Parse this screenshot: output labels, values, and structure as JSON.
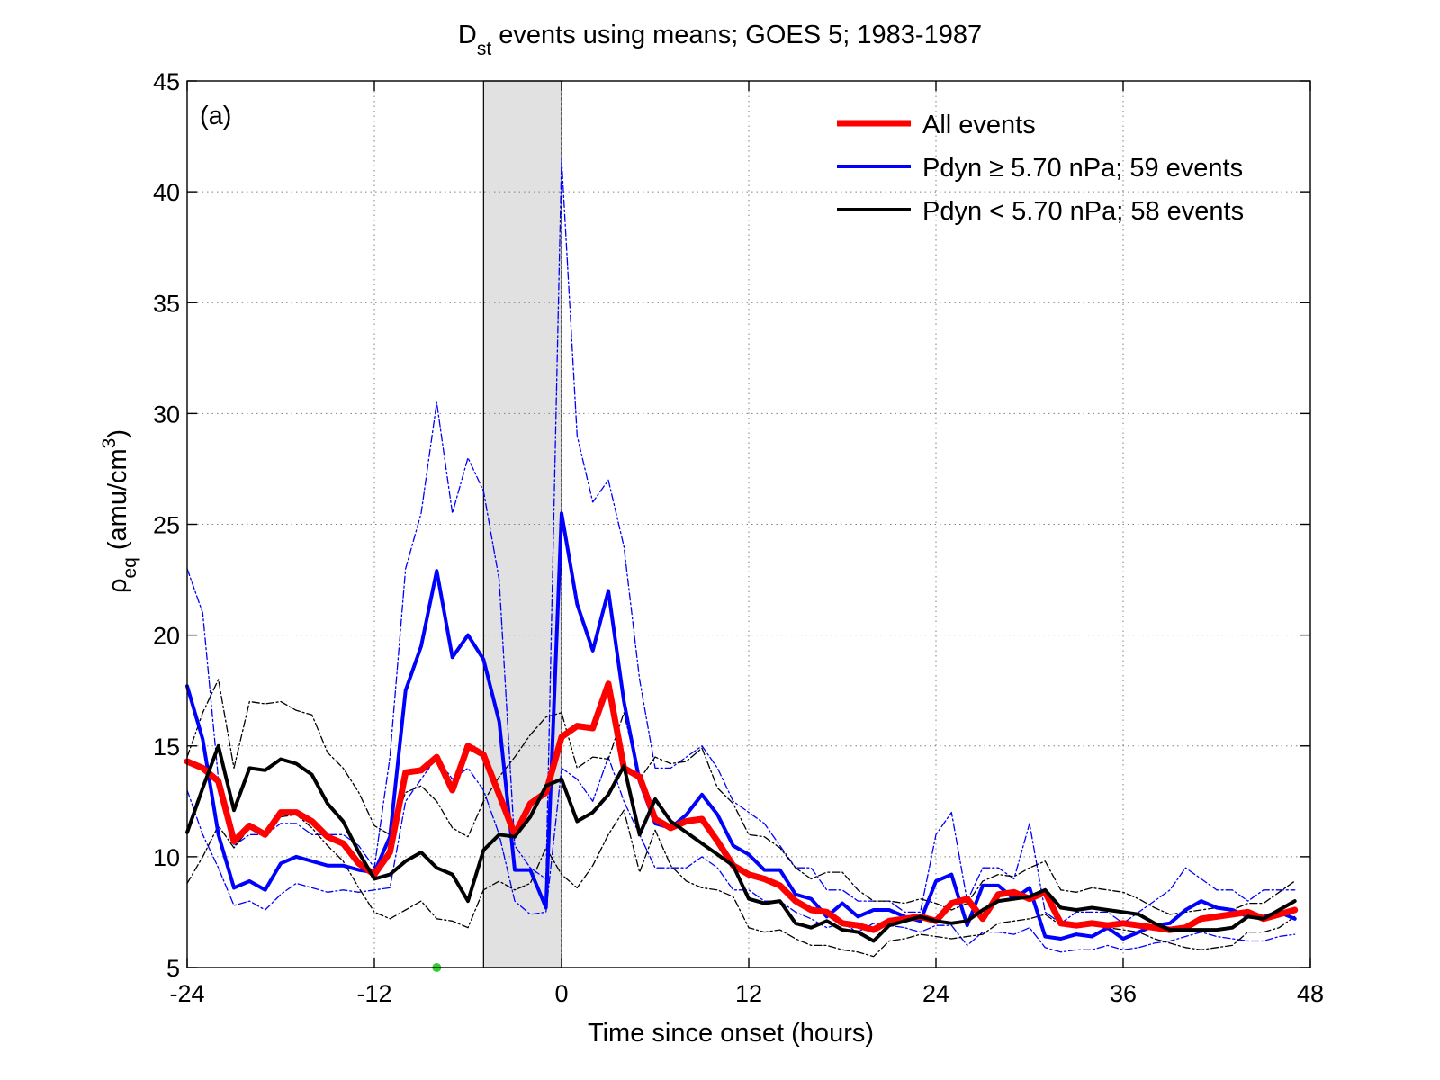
{
  "chart_data": {
    "type": "line",
    "title": {
      "main": "D",
      "subscript": "st",
      "rest": " events using means; GOES 5; 1983-1987"
    },
    "panel_label": "(a)",
    "xlabel": "Time since onset (hours)",
    "ylabel": {
      "symbol": "ρ",
      "subscript": "eq",
      "unit_open": " (amu/cm",
      "unit_power": "3",
      "unit_close": ")"
    },
    "xlim": [
      -24,
      48
    ],
    "ylim": [
      5,
      45
    ],
    "xticks": [
      -24,
      -12,
      0,
      12,
      24,
      36,
      48
    ],
    "yticks": [
      5,
      10,
      15,
      20,
      25,
      30,
      35,
      40,
      45
    ],
    "grid": true,
    "legend_position": "top-right",
    "shaded_interval": {
      "x": [
        -5,
        0
      ],
      "color": "#e1e1e1"
    },
    "marker": {
      "x": -8,
      "y": 5,
      "color": "#33cc33"
    },
    "x": [
      -24,
      -23,
      -22,
      -21,
      -20,
      -19,
      -18,
      -17,
      -16,
      -15,
      -14,
      -13,
      -12,
      -11,
      -10,
      -9,
      -8,
      -7,
      -6,
      -5,
      -4,
      -3,
      -2,
      -1,
      0,
      1,
      2,
      3,
      4,
      5,
      6,
      7,
      8,
      9,
      10,
      11,
      12,
      13,
      14,
      15,
      16,
      17,
      18,
      19,
      20,
      21,
      22,
      23,
      24,
      25,
      26,
      27,
      28,
      29,
      30,
      31,
      32,
      33,
      34,
      35,
      36,
      37,
      38,
      39,
      40,
      41,
      42,
      43,
      44,
      45,
      46,
      47
    ],
    "series": [
      {
        "name": "All events",
        "color": "#ff0000",
        "width": 7,
        "style": "solid",
        "values": [
          14.3,
          14.0,
          13.4,
          10.7,
          11.4,
          11.0,
          12.0,
          12.0,
          11.6,
          10.9,
          10.6,
          9.7,
          9.2,
          10.2,
          13.8,
          13.9,
          14.5,
          13.0,
          15.0,
          14.6,
          12.8,
          11.0,
          12.4,
          12.9,
          15.4,
          15.9,
          15.8,
          17.8,
          14.0,
          13.6,
          11.7,
          11.3,
          11.6,
          11.7,
          10.7,
          9.6,
          9.2,
          9.0,
          8.7,
          8.0,
          7.6,
          7.5,
          7.0,
          6.9,
          6.7,
          7.1,
          7.2,
          7.3,
          7.1,
          7.9,
          8.1,
          7.2,
          8.3,
          8.4,
          8.1,
          8.4,
          7.0,
          6.9,
          7.0,
          6.9,
          7.0,
          6.9,
          6.8,
          6.7,
          6.8,
          7.2,
          7.3,
          7.4,
          7.5,
          7.2,
          7.4,
          7.6
        ]
      },
      {
        "name": "Pdyn  ≥ 5.70 nPa; 59 events",
        "legend_symbol": "Pdyn  ≥ 5.70 nPa; 59 events",
        "color": "#0000ff",
        "width": 4,
        "style": "solid",
        "values": [
          17.7,
          15.3,
          11.0,
          8.6,
          8.9,
          8.5,
          9.7,
          10.0,
          9.8,
          9.6,
          9.6,
          9.4,
          9.3,
          10.9,
          17.5,
          19.5,
          22.9,
          19.0,
          20.0,
          18.9,
          16.1,
          9.4,
          9.4,
          7.7,
          25.5,
          21.4,
          19.3,
          22.0,
          17.0,
          13.4,
          11.5,
          11.3,
          11.9,
          12.8,
          11.9,
          10.5,
          10.1,
          9.4,
          9.4,
          8.3,
          8.1,
          7.3,
          7.9,
          7.3,
          7.6,
          7.6,
          7.3,
          7.1,
          8.9,
          9.2,
          6.9,
          8.7,
          8.7,
          8.1,
          8.6,
          6.4,
          6.3,
          6.5,
          6.4,
          6.8,
          6.3,
          6.6,
          6.9,
          7.0,
          7.6,
          8.0,
          7.7,
          7.6,
          7.3,
          7.3,
          7.5,
          7.2
        ]
      },
      {
        "name": "Pdyn < 5.70 nPa; 58 events",
        "legend_symbol": "Pdyn < 5.70 nPa; 58 events",
        "color": "#000000",
        "width": 4,
        "style": "solid",
        "values": [
          11.1,
          13.1,
          15.0,
          12.1,
          14.0,
          13.9,
          14.4,
          14.2,
          13.7,
          12.4,
          11.6,
          10.2,
          9.0,
          9.2,
          9.8,
          10.2,
          9.5,
          9.2,
          8.0,
          10.3,
          11.0,
          10.9,
          11.8,
          13.2,
          13.5,
          11.6,
          12.0,
          12.8,
          14.1,
          11.0,
          12.6,
          11.6,
          11.1,
          10.6,
          10.1,
          9.6,
          8.1,
          7.9,
          8.0,
          7.0,
          6.8,
          7.1,
          6.7,
          6.6,
          6.2,
          6.9,
          7.1,
          7.3,
          7.1,
          7.0,
          7.1,
          7.6,
          8.0,
          8.1,
          8.2,
          8.5,
          7.7,
          7.6,
          7.7,
          7.6,
          7.5,
          7.4,
          7.0,
          6.7,
          6.7,
          6.7,
          6.7,
          6.8,
          7.3,
          7.2,
          7.6,
          8.0
        ]
      },
      {
        "name": "",
        "color": "#0000ff",
        "width": 1.3,
        "style": "dashdot",
        "values": [
          23.0,
          21.0,
          13.5,
          10.5,
          11.0,
          11.0,
          11.5,
          11.5,
          11.0,
          11.0,
          11.0,
          10.5,
          9.5,
          14.5,
          23.0,
          25.5,
          30.5,
          25.5,
          28.0,
          26.5,
          22.5,
          10.5,
          9.5,
          9.0,
          41.5,
          29.0,
          26.0,
          27.0,
          24.0,
          18.0,
          14.0,
          14.0,
          14.5,
          15.0,
          14.0,
          12.5,
          12.0,
          11.5,
          10.5,
          9.5,
          9.5,
          8.5,
          8.5,
          8.0,
          8.0,
          8.0,
          7.5,
          7.5,
          11.0,
          12.0,
          8.0,
          9.5,
          9.5,
          9.0,
          11.5,
          7.5,
          7.0,
          7.5,
          7.5,
          7.5,
          7.0,
          7.5,
          8.0,
          8.5,
          9.5,
          9.0,
          8.5,
          8.5,
          8.0,
          8.5,
          8.5,
          8.5
        ]
      },
      {
        "name": "",
        "color": "#0000ff",
        "width": 1.3,
        "style": "dashdot",
        "values": [
          13.0,
          11.0,
          9.5,
          7.8,
          8.0,
          7.6,
          8.3,
          8.8,
          8.6,
          8.4,
          8.5,
          8.4,
          8.5,
          8.6,
          12.5,
          13.5,
          14.5,
          13.5,
          14.0,
          13.0,
          11.0,
          8.0,
          7.4,
          7.5,
          14.0,
          13.5,
          12.5,
          14.5,
          12.5,
          11.0,
          9.5,
          9.5,
          9.5,
          10.0,
          9.5,
          8.5,
          8.5,
          8.0,
          8.0,
          7.5,
          7.2,
          6.8,
          7.0,
          6.6,
          7.0,
          6.9,
          6.8,
          6.6,
          6.9,
          6.9,
          6.0,
          6.6,
          6.6,
          6.5,
          6.8,
          5.9,
          5.7,
          5.8,
          5.8,
          6.0,
          5.8,
          5.9,
          6.1,
          6.2,
          6.4,
          6.6,
          6.4,
          6.3,
          6.2,
          6.2,
          6.4,
          6.5
        ]
      },
      {
        "name": "",
        "color": "#000000",
        "width": 1.3,
        "style": "dashdot",
        "values": [
          14.5,
          16.5,
          18.0,
          14.0,
          17.0,
          16.9,
          17.0,
          16.6,
          16.4,
          14.7,
          14.0,
          12.9,
          11.4,
          11.0,
          12.9,
          13.2,
          12.5,
          11.3,
          10.9,
          12.5,
          13.6,
          14.5,
          15.5,
          16.3,
          16.5,
          14.0,
          14.5,
          14.4,
          16.5,
          13.5,
          14.5,
          14.2,
          14.3,
          14.9,
          13.1,
          12.4,
          11.0,
          10.9,
          10.4,
          9.5,
          9.0,
          9.3,
          9.3,
          8.5,
          8.0,
          8.0,
          7.9,
          8.1,
          7.9,
          7.6,
          7.9,
          8.9,
          9.2,
          9.1,
          9.5,
          9.8,
          8.5,
          8.4,
          8.6,
          8.5,
          8.4,
          8.1,
          7.7,
          7.4,
          7.5,
          7.6,
          7.7,
          7.6,
          7.9,
          7.9,
          8.4,
          8.9
        ]
      },
      {
        "name": "",
        "color": "#000000",
        "width": 1.3,
        "style": "dashdot",
        "values": [
          8.8,
          10.0,
          11.4,
          10.4,
          11.3,
          11.0,
          11.8,
          11.9,
          11.3,
          10.5,
          9.8,
          8.6,
          7.5,
          7.2,
          7.6,
          8.0,
          7.2,
          7.1,
          6.8,
          8.5,
          8.9,
          8.5,
          8.8,
          10.4,
          9.2,
          8.6,
          9.6,
          11.0,
          12.1,
          9.3,
          11.2,
          9.6,
          8.9,
          8.6,
          8.5,
          8.2,
          6.8,
          6.6,
          6.7,
          6.3,
          6.0,
          6.0,
          5.8,
          5.7,
          5.5,
          6.2,
          6.3,
          6.5,
          6.4,
          6.3,
          6.4,
          6.5,
          7.0,
          7.1,
          7.2,
          7.4,
          6.9,
          6.8,
          6.9,
          6.8,
          6.7,
          6.6,
          6.3,
          6.1,
          5.9,
          5.8,
          5.9,
          6.0,
          6.6,
          6.6,
          6.8,
          7.3
        ]
      }
    ]
  }
}
